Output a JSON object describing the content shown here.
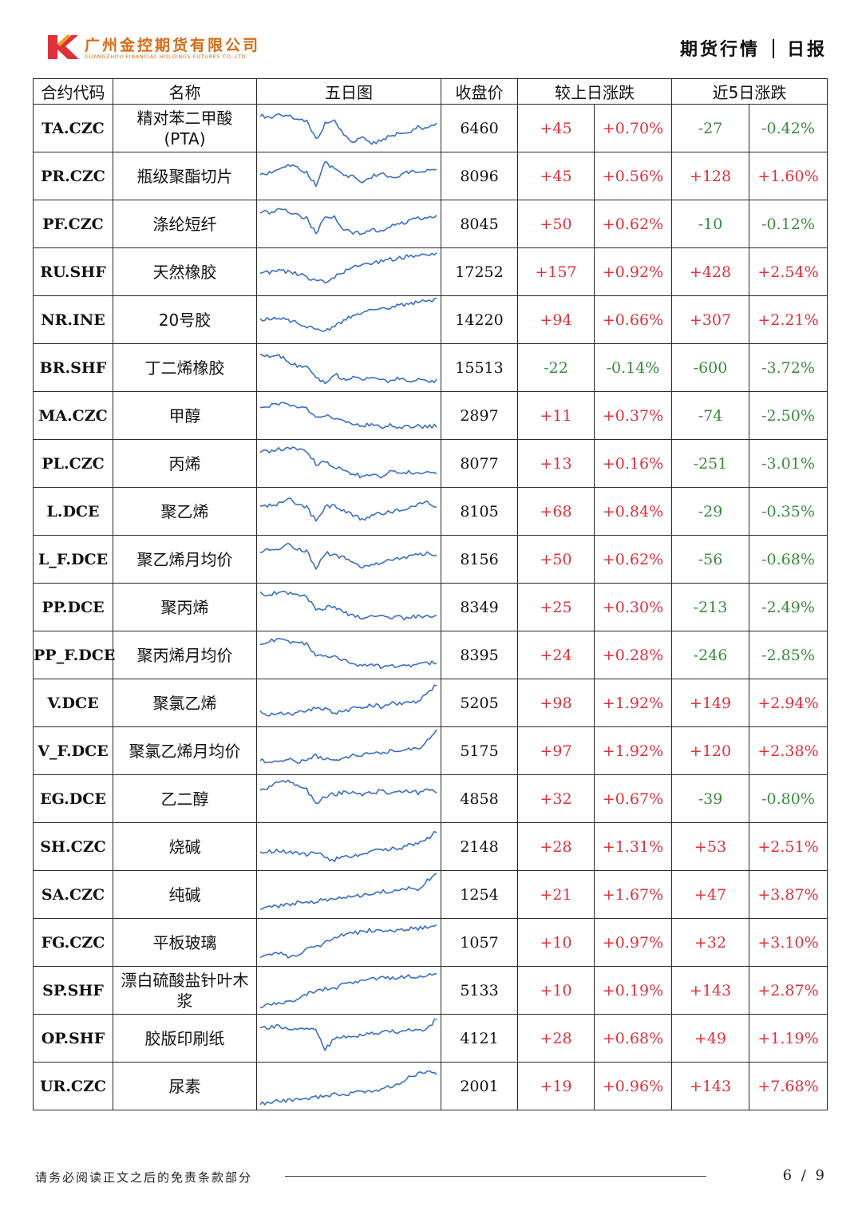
{
  "header": {
    "company_cn": "广州金控期货有限公司",
    "company_en": "GUANGZHOU FINANCIAL HOLDINGS FUTURES CO.,LTD",
    "report_type": "期货行情",
    "report_freq": "日报",
    "brand_color": "#d96a16"
  },
  "table": {
    "columns": {
      "code": "合约代码",
      "name": "名称",
      "chart": "五日图",
      "close": "收盘价",
      "daily": "较上日涨跌",
      "five_day": "近5日涨跌"
    },
    "rows": [
      {
        "code": "TA.CZC",
        "name": "精对苯二甲酸(PTA)",
        "close": "6460",
        "chg": "+45",
        "chg_pct": "+0.70%",
        "chg5": "-27",
        "chg5_pct": "-0.42%"
      },
      {
        "code": "PR.CZC",
        "name": "瓶级聚酯切片",
        "close": "8096",
        "chg": "+45",
        "chg_pct": "+0.56%",
        "chg5": "+128",
        "chg5_pct": "+1.60%"
      },
      {
        "code": "PF.CZC",
        "name": "涤纶短纤",
        "close": "8045",
        "chg": "+50",
        "chg_pct": "+0.62%",
        "chg5": "-10",
        "chg5_pct": "-0.12%"
      },
      {
        "code": "RU.SHF",
        "name": "天然橡胶",
        "close": "17252",
        "chg": "+157",
        "chg_pct": "+0.92%",
        "chg5": "+428",
        "chg5_pct": "+2.54%"
      },
      {
        "code": "NR.INE",
        "name": "20号胶",
        "close": "14220",
        "chg": "+94",
        "chg_pct": "+0.66%",
        "chg5": "+307",
        "chg5_pct": "+2.21%"
      },
      {
        "code": "BR.SHF",
        "name": "丁二烯橡胶",
        "close": "15513",
        "chg": "-22",
        "chg_pct": "-0.14%",
        "chg5": "-600",
        "chg5_pct": "-3.72%"
      },
      {
        "code": "MA.CZC",
        "name": "甲醇",
        "close": "2897",
        "chg": "+11",
        "chg_pct": "+0.37%",
        "chg5": "-74",
        "chg5_pct": "-2.50%"
      },
      {
        "code": "PL.CZC",
        "name": "丙烯",
        "close": "8077",
        "chg": "+13",
        "chg_pct": "+0.16%",
        "chg5": "-251",
        "chg5_pct": "-3.01%"
      },
      {
        "code": "L.DCE",
        "name": "聚乙烯",
        "close": "8105",
        "chg": "+68",
        "chg_pct": "+0.84%",
        "chg5": "-29",
        "chg5_pct": "-0.35%"
      },
      {
        "code": "L_F.DCE",
        "name": "聚乙烯月均价",
        "close": "8156",
        "chg": "+50",
        "chg_pct": "+0.62%",
        "chg5": "-56",
        "chg5_pct": "-0.68%"
      },
      {
        "code": "PP.DCE",
        "name": "聚丙烯",
        "close": "8349",
        "chg": "+25",
        "chg_pct": "+0.30%",
        "chg5": "-213",
        "chg5_pct": "-2.49%"
      },
      {
        "code": "PP_F.DCE",
        "name": "聚丙烯月均价",
        "close": "8395",
        "chg": "+24",
        "chg_pct": "+0.28%",
        "chg5": "-246",
        "chg5_pct": "-2.85%"
      },
      {
        "code": "V.DCE",
        "name": "聚氯乙烯",
        "close": "5205",
        "chg": "+98",
        "chg_pct": "+1.92%",
        "chg5": "+149",
        "chg5_pct": "+2.94%"
      },
      {
        "code": "V_F.DCE",
        "name": "聚氯乙烯月均价",
        "close": "5175",
        "chg": "+97",
        "chg_pct": "+1.92%",
        "chg5": "+120",
        "chg5_pct": "+2.38%"
      },
      {
        "code": "EG.DCE",
        "name": "乙二醇",
        "close": "4858",
        "chg": "+32",
        "chg_pct": "+0.67%",
        "chg5": "-39",
        "chg5_pct": "-0.80%"
      },
      {
        "code": "SH.CZC",
        "name": "烧碱",
        "close": "2148",
        "chg": "+28",
        "chg_pct": "+1.31%",
        "chg5": "+53",
        "chg5_pct": "+2.51%"
      },
      {
        "code": "SA.CZC",
        "name": "纯碱",
        "close": "1254",
        "chg": "+21",
        "chg_pct": "+1.67%",
        "chg5": "+47",
        "chg5_pct": "+3.87%"
      },
      {
        "code": "FG.CZC",
        "name": "平板玻璃",
        "close": "1057",
        "chg": "+10",
        "chg_pct": "+0.97%",
        "chg5": "+32",
        "chg5_pct": "+3.10%"
      },
      {
        "code": "SP.SHF",
        "name": "漂白硫酸盐针叶木浆",
        "close": "5133",
        "chg": "+10",
        "chg_pct": "+0.19%",
        "chg5": "+143",
        "chg5_pct": "+2.87%"
      },
      {
        "code": "OP.SHF",
        "name": "胶版印刷纸",
        "close": "4121",
        "chg": "+28",
        "chg_pct": "+0.68%",
        "chg5": "+49",
        "chg5_pct": "+1.19%"
      },
      {
        "code": "UR.CZC",
        "name": "尿素",
        "close": "2001",
        "chg": "+19",
        "chg_pct": "+0.96%",
        "chg5": "+143",
        "chg5_pct": "+7.68%"
      }
    ]
  },
  "colors": {
    "up": "#e0303a",
    "down": "#3b8a3c",
    "sparkline": "#3a6fc4"
  },
  "footer": {
    "disclaimer": "请务必阅读正文之后的免责条款部分",
    "page": "6 / 9"
  }
}
